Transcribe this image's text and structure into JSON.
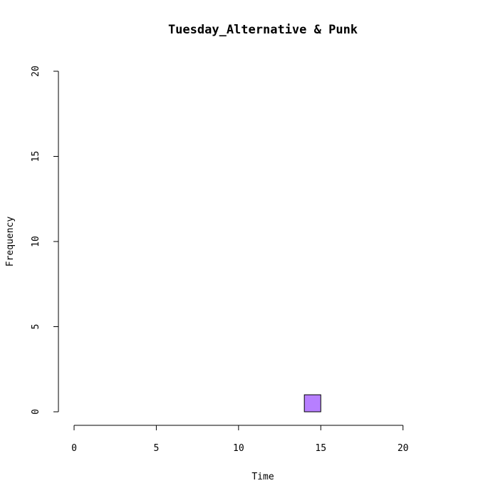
{
  "chart_data": {
    "type": "bar",
    "title": "Tuesday_Alternative & Punk",
    "xlabel": "Time",
    "ylabel": "Frequency",
    "bins": [
      {
        "x0": 0,
        "x1": 1,
        "count": 0
      },
      {
        "x0": 1,
        "x1": 2,
        "count": 0
      },
      {
        "x0": 2,
        "x1": 3,
        "count": 0
      },
      {
        "x0": 3,
        "x1": 4,
        "count": 0
      },
      {
        "x0": 4,
        "x1": 5,
        "count": 0
      },
      {
        "x0": 5,
        "x1": 6,
        "count": 0
      },
      {
        "x0": 6,
        "x1": 7,
        "count": 0
      },
      {
        "x0": 7,
        "x1": 8,
        "count": 0
      },
      {
        "x0": 8,
        "x1": 9,
        "count": 0
      },
      {
        "x0": 9,
        "x1": 10,
        "count": 0
      },
      {
        "x0": 10,
        "x1": 11,
        "count": 0
      },
      {
        "x0": 11,
        "x1": 12,
        "count": 0
      },
      {
        "x0": 12,
        "x1": 13,
        "count": 0
      },
      {
        "x0": 13,
        "x1": 14,
        "count": 0
      },
      {
        "x0": 14,
        "x1": 15,
        "count": 1
      },
      {
        "x0": 15,
        "x1": 16,
        "count": 0
      },
      {
        "x0": 16,
        "x1": 17,
        "count": 0
      },
      {
        "x0": 17,
        "x1": 18,
        "count": 0
      },
      {
        "x0": 18,
        "x1": 19,
        "count": 0
      },
      {
        "x0": 19,
        "x1": 20,
        "count": 0
      },
      {
        "x0": 20,
        "x1": 21,
        "count": 0
      },
      {
        "x0": 21,
        "x1": 22,
        "count": 0
      },
      {
        "x0": 22,
        "x1": 23,
        "count": 0
      },
      {
        "x0": 23,
        "x1": 24,
        "count": 0
      }
    ],
    "xlim": [
      0,
      24
    ],
    "ylim": [
      0,
      20
    ],
    "x_ticks": [
      0,
      5,
      10,
      15,
      20
    ],
    "y_ticks": [
      0,
      5,
      10,
      15,
      20
    ],
    "bar_color": "#b77fff",
    "grid": false
  }
}
